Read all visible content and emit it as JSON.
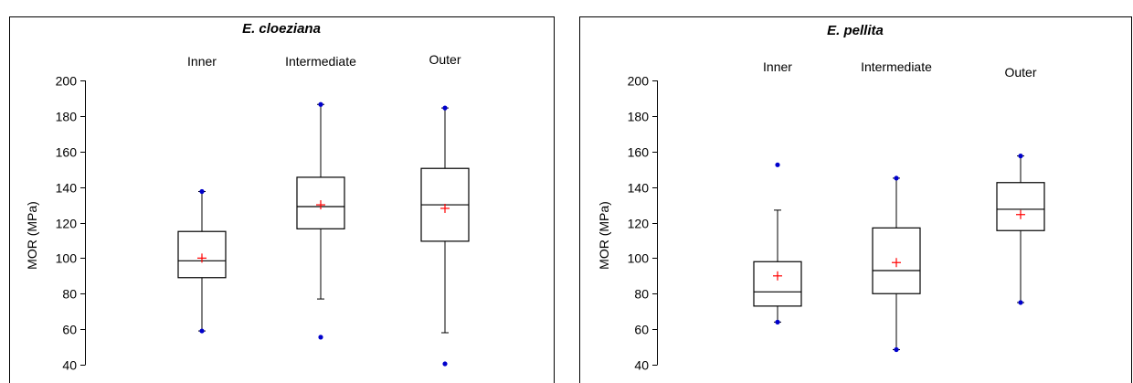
{
  "chart_data": [
    {
      "type": "box",
      "title": "E. cloeziana",
      "ylabel": "MOR (MPa)",
      "xlabel": "",
      "ylim": [
        40,
        200
      ],
      "yticks": [
        40,
        60,
        80,
        100,
        120,
        140,
        160,
        180,
        200
      ],
      "categories": [
        "Inner",
        "Intermediate",
        "Outer"
      ],
      "boxes": [
        {
          "name": "Inner",
          "whisker_low": 59,
          "q1": 89,
          "median": 98.5,
          "q3": 115,
          "whisker_high": 137.5,
          "mean": 100,
          "min": 59,
          "max": 137.5,
          "outliers": []
        },
        {
          "name": "Intermediate",
          "whisker_low": 77,
          "q1": 116.5,
          "median": 129,
          "q3": 145.5,
          "whisker_high": 186.5,
          "mean": 130,
          "min": 55.5,
          "max": 186.5,
          "outliers": [
            55.5
          ]
        },
        {
          "name": "Outer",
          "whisker_low": 58,
          "q1": 109.5,
          "median": 130,
          "q3": 150.5,
          "whisker_high": 184.5,
          "mean": 128,
          "min": 40.5,
          "max": 184.5,
          "outliers": [
            40.5
          ]
        }
      ]
    },
    {
      "type": "box",
      "title": "E. pellita",
      "ylabel": "MOR (MPa)",
      "xlabel": "",
      "ylim": [
        40,
        200
      ],
      "yticks": [
        40,
        60,
        80,
        100,
        120,
        140,
        160,
        180,
        200
      ],
      "categories": [
        "Inner",
        "Intermediate",
        "Outer"
      ],
      "boxes": [
        {
          "name": "Inner",
          "whisker_low": 64,
          "q1": 73,
          "median": 81,
          "q3": 98,
          "whisker_high": 127,
          "mean": 90,
          "min": 64,
          "max": 152.5,
          "outliers": [
            152.5
          ]
        },
        {
          "name": "Intermediate",
          "whisker_low": 48.5,
          "q1": 80,
          "median": 93,
          "q3": 117,
          "whisker_high": 145,
          "mean": 97.5,
          "min": 48.5,
          "max": 145,
          "outliers": []
        },
        {
          "name": "Outer",
          "whisker_low": 75,
          "q1": 115.5,
          "median": 127.5,
          "q3": 142.5,
          "whisker_high": 157.5,
          "mean": 124.5,
          "min": 75,
          "max": 157.5,
          "outliers": []
        }
      ]
    }
  ],
  "colors": {
    "box": "#000000",
    "mean_marker": "#ff0000",
    "extreme_points": "#0000cc"
  }
}
